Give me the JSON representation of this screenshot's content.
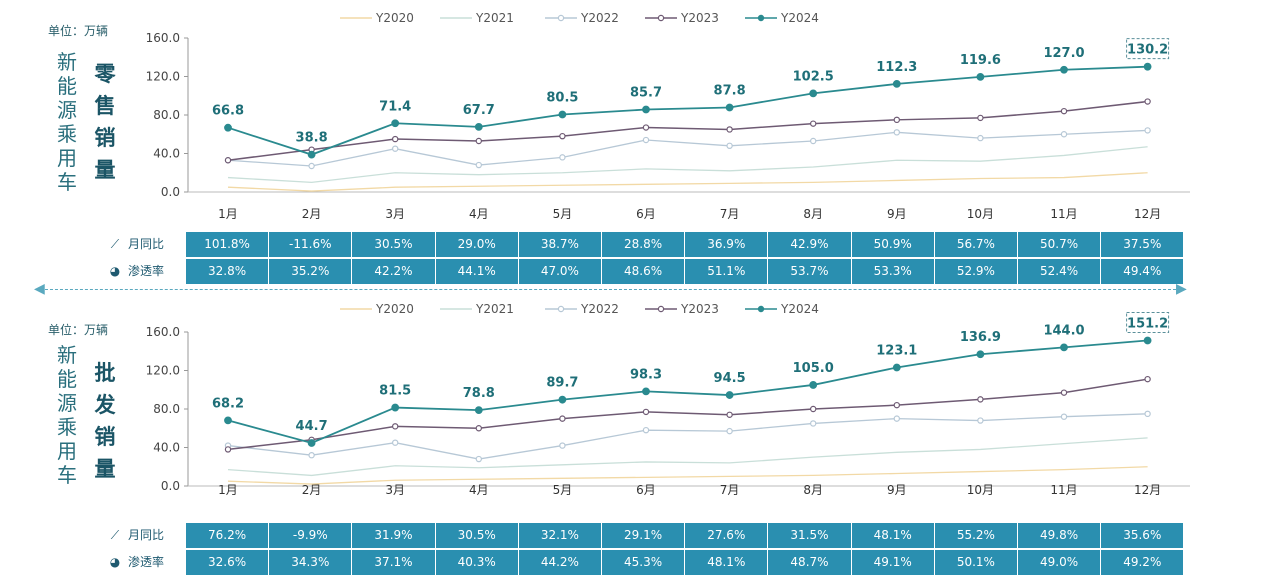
{
  "unit_label": "单位：万辆",
  "legend": [
    "Y2020",
    "Y2021",
    "Y2022",
    "Y2023",
    "Y2024"
  ],
  "months": [
    "1月",
    "2月",
    "3月",
    "4月",
    "5月",
    "6月",
    "7月",
    "8月",
    "9月",
    "10月",
    "11月",
    "12月"
  ],
  "yticks": [
    "0.0",
    "40.0",
    "80.0",
    "120.0",
    "160.0"
  ],
  "colors": {
    "Y2020": "#f2d9a6",
    "Y2021": "#c9dfd9",
    "Y2022": "#b7c8d6",
    "Y2023": "#6e5a73",
    "Y2024": "#2a8a8f",
    "table": "#2a8fb0"
  },
  "row_labels": {
    "yoy": "月同比",
    "pen": "渗透率"
  },
  "chart_data": [
    {
      "type": "line",
      "title_a": "新能源乘用车",
      "title_b": "零售销量",
      "ylim": [
        0,
        160
      ],
      "categories": [
        "1月",
        "2月",
        "3月",
        "4月",
        "5月",
        "6月",
        "7月",
        "8月",
        "9月",
        "10月",
        "11月",
        "12月"
      ],
      "series": [
        {
          "name": "Y2020",
          "values": [
            5,
            1,
            5,
            6,
            7,
            8,
            9,
            10,
            12,
            14,
            15,
            20
          ]
        },
        {
          "name": "Y2021",
          "values": [
            15,
            10,
            20,
            18,
            20,
            24,
            22,
            26,
            33,
            32,
            38,
            47
          ]
        },
        {
          "name": "Y2022",
          "values": [
            33,
            27,
            45,
            28,
            36,
            54,
            48,
            53,
            62,
            56,
            60,
            64
          ]
        },
        {
          "name": "Y2023",
          "values": [
            33,
            44,
            55,
            53,
            58,
            67,
            65,
            71,
            75,
            77,
            84,
            94
          ]
        },
        {
          "name": "Y2024",
          "values": [
            66.8,
            38.8,
            71.4,
            67.7,
            80.5,
            85.7,
            87.8,
            102.5,
            112.3,
            119.6,
            127.0,
            130.2
          ]
        }
      ],
      "data_labels": [
        "66.8",
        "38.8",
        "71.4",
        "67.7",
        "80.5",
        "85.7",
        "87.8",
        "102.5",
        "112.3",
        "119.6",
        "127.0",
        "130.2"
      ],
      "yoy": [
        "101.8%",
        "-11.6%",
        "30.5%",
        "29.0%",
        "38.7%",
        "28.8%",
        "36.9%",
        "42.9%",
        "50.9%",
        "56.7%",
        "50.7%",
        "37.5%"
      ],
      "pen": [
        "32.8%",
        "35.2%",
        "42.2%",
        "44.1%",
        "47.0%",
        "48.6%",
        "51.1%",
        "53.7%",
        "53.3%",
        "52.9%",
        "52.4%",
        "49.4%"
      ]
    },
    {
      "type": "line",
      "title_a": "新能源乘用车",
      "title_b": "批发销量",
      "ylim": [
        0,
        160
      ],
      "categories": [
        "1月",
        "2月",
        "3月",
        "4月",
        "5月",
        "6月",
        "7月",
        "8月",
        "9月",
        "10月",
        "11月",
        "12月"
      ],
      "series": [
        {
          "name": "Y2020",
          "values": [
            5,
            2,
            6,
            7,
            8,
            9,
            10,
            11,
            13,
            15,
            17,
            20
          ]
        },
        {
          "name": "Y2021",
          "values": [
            17,
            11,
            21,
            19,
            22,
            25,
            24,
            30,
            35,
            38,
            44,
            50
          ]
        },
        {
          "name": "Y2022",
          "values": [
            42,
            32,
            45,
            28,
            42,
            58,
            57,
            65,
            70,
            68,
            72,
            75
          ]
        },
        {
          "name": "Y2023",
          "values": [
            38,
            48,
            62,
            60,
            70,
            77,
            74,
            80,
            84,
            90,
            97,
            111
          ]
        },
        {
          "name": "Y2024",
          "values": [
            68.2,
            44.7,
            81.5,
            78.8,
            89.7,
            98.3,
            94.5,
            105.0,
            123.1,
            136.9,
            144.0,
            151.2
          ]
        }
      ],
      "data_labels": [
        "68.2",
        "44.7",
        "81.5",
        "78.8",
        "89.7",
        "98.3",
        "94.5",
        "105.0",
        "123.1",
        "136.9",
        "144.0",
        "151.2"
      ],
      "yoy": [
        "76.2%",
        "-9.9%",
        "31.9%",
        "30.5%",
        "32.1%",
        "29.1%",
        "27.6%",
        "31.5%",
        "48.1%",
        "55.2%",
        "49.8%",
        "35.6%"
      ],
      "pen": [
        "32.6%",
        "34.3%",
        "37.1%",
        "40.3%",
        "44.2%",
        "45.3%",
        "48.1%",
        "48.7%",
        "49.1%",
        "50.1%",
        "49.0%",
        "49.2%"
      ]
    }
  ]
}
